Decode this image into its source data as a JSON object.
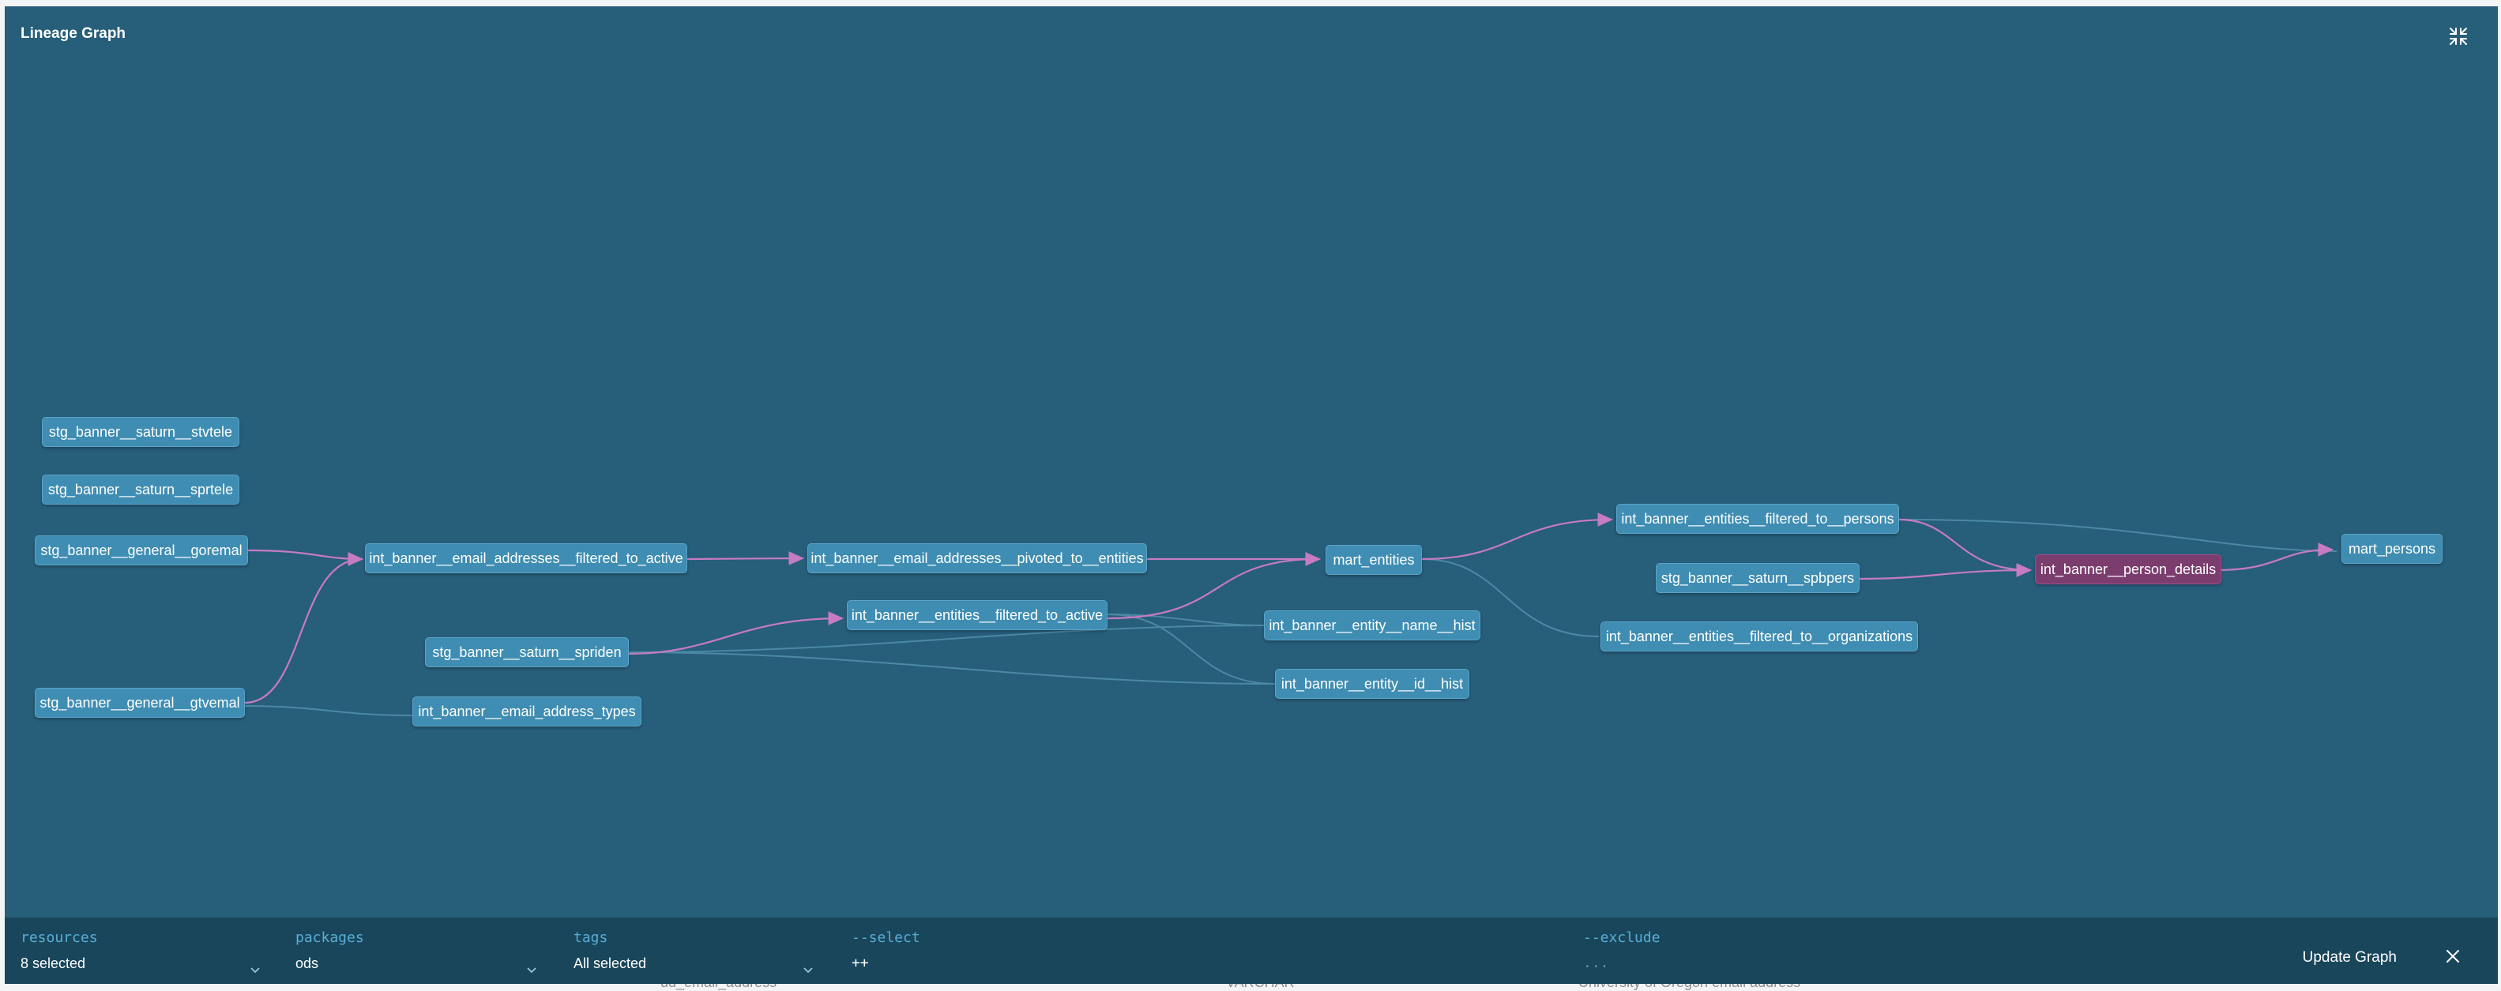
{
  "modal": {
    "title": "Lineage Graph",
    "collapse_icon": "collapse-arrows-icon"
  },
  "background_text": {
    "col1": "ud_email_address",
    "col2": "VARCHAR",
    "col3": "University of Oregon email address"
  },
  "graph": {
    "nodes": [
      {
        "id": "stvtele",
        "label": "stg_banner__saturn__stvtele",
        "selected": false
      },
      {
        "id": "sprtele",
        "label": "stg_banner__saturn__sprtele",
        "selected": false
      },
      {
        "id": "goremal",
        "label": "stg_banner__general__goremal",
        "selected": false
      },
      {
        "id": "gtvemal",
        "label": "stg_banner__general__gtvemal",
        "selected": false
      },
      {
        "id": "email_filtered",
        "label": "int_banner__email_addresses__filtered_to_active",
        "selected": false
      },
      {
        "id": "email_types",
        "label": "int_banner__email_address_types",
        "selected": false
      },
      {
        "id": "spriden",
        "label": "stg_banner__saturn__spriden",
        "selected": false
      },
      {
        "id": "email_pivoted",
        "label": "int_banner__email_addresses__pivoted_to__entities",
        "selected": false
      },
      {
        "id": "entities_filtered",
        "label": "int_banner__entities__filtered_to_active",
        "selected": false
      },
      {
        "id": "mart_entities",
        "label": "mart_entities",
        "selected": false
      },
      {
        "id": "name_hist",
        "label": "int_banner__entity__name__hist",
        "selected": false
      },
      {
        "id": "id_hist",
        "label": "int_banner__entity__id__hist",
        "selected": false
      },
      {
        "id": "to_persons",
        "label": "int_banner__entities__filtered_to__persons",
        "selected": false
      },
      {
        "id": "spbpers",
        "label": "stg_banner__saturn__spbpers",
        "selected": false
      },
      {
        "id": "to_orgs",
        "label": "int_banner__entities__filtered_to__organizations",
        "selected": false
      },
      {
        "id": "person_details",
        "label": "int_banner__person_details",
        "selected": true
      },
      {
        "id": "mart_persons",
        "label": "mart_persons",
        "selected": false
      }
    ],
    "colors": {
      "background": "#275e7a",
      "node": "#3f8db2",
      "node_selected": "#7b3d6e",
      "edge_highlight": "#c77bc0",
      "edge_dim": "#4b89a4"
    }
  },
  "footer": {
    "resources": {
      "label": "resources",
      "value": "8 selected"
    },
    "packages": {
      "label": "packages",
      "value": "ods"
    },
    "tags": {
      "label": "tags",
      "value": "All selected"
    },
    "select": {
      "label": "--select",
      "value": "++"
    },
    "exclude": {
      "label": "--exclude",
      "value": "..."
    },
    "update_label": "Update Graph",
    "close_icon": "close-icon"
  }
}
